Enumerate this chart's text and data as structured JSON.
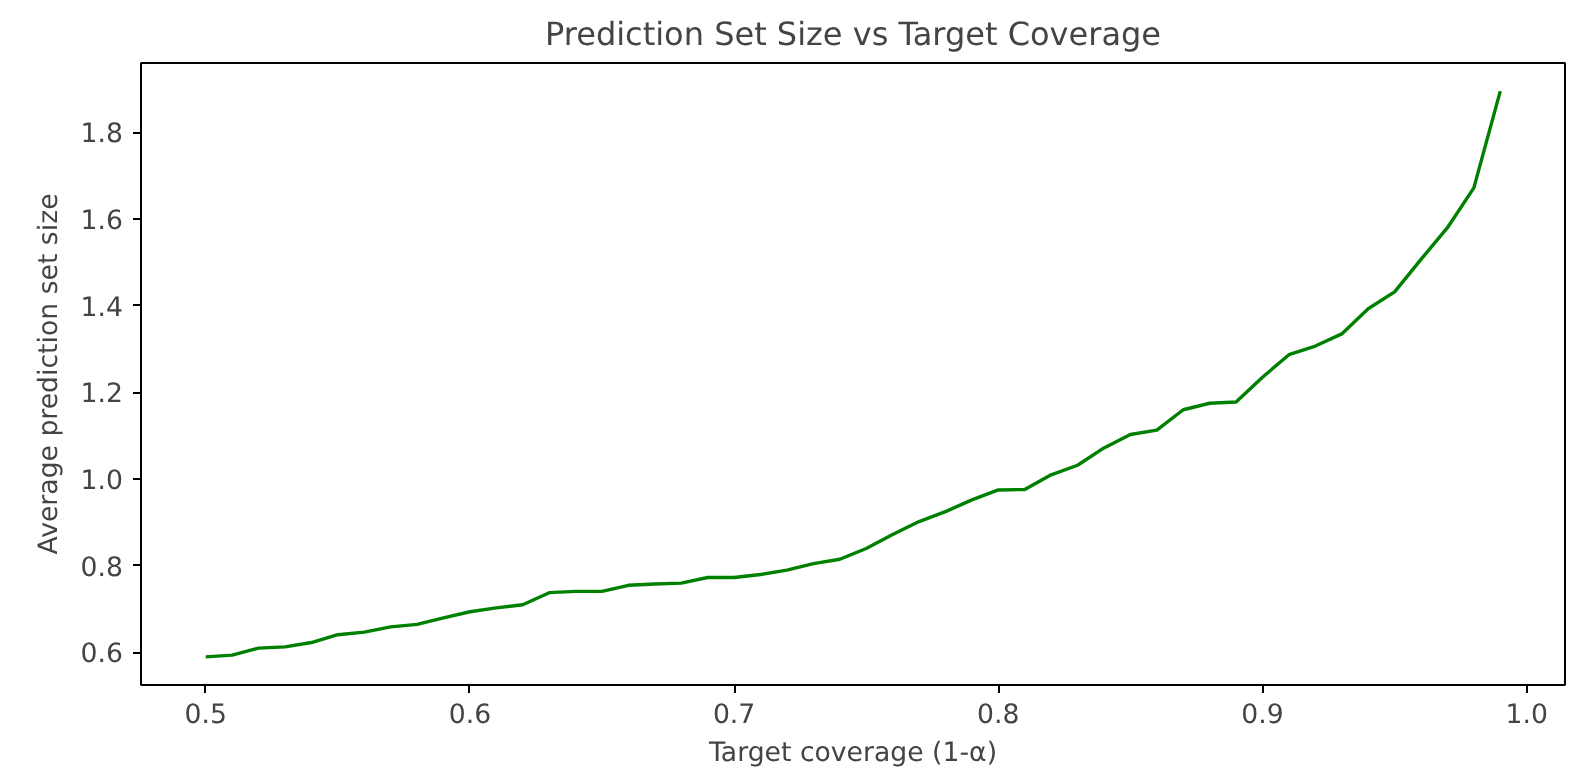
{
  "chart_data": {
    "type": "line",
    "title": "Prediction Set Size vs Target Coverage",
    "xlabel": "Target coverage (1-α)",
    "ylabel": "Average prediction set size",
    "x": [
      0.5,
      0.51,
      0.52,
      0.53,
      0.54,
      0.55,
      0.56,
      0.57,
      0.58,
      0.59,
      0.6,
      0.61,
      0.62,
      0.63,
      0.64,
      0.65,
      0.66,
      0.67,
      0.68,
      0.69,
      0.7,
      0.71,
      0.72,
      0.73,
      0.74,
      0.75,
      0.76,
      0.77,
      0.78,
      0.79,
      0.8,
      0.81,
      0.82,
      0.83,
      0.84,
      0.85,
      0.86,
      0.87,
      0.88,
      0.89,
      0.9,
      0.91,
      0.92,
      0.93,
      0.94,
      0.95,
      0.96,
      0.97,
      0.98,
      0.99
    ],
    "series": [
      {
        "color": "#008000",
        "values": [
          0.59,
          0.594,
          0.61,
          0.613,
          0.623,
          0.641,
          0.647,
          0.659,
          0.665,
          0.68,
          0.694,
          0.703,
          0.71,
          0.738,
          0.741,
          0.741,
          0.755,
          0.758,
          0.76,
          0.773,
          0.773,
          0.78,
          0.79,
          0.805,
          0.815,
          0.84,
          0.872,
          0.902,
          0.925,
          0.952,
          0.975,
          0.976,
          1.01,
          1.032,
          1.072,
          1.103,
          1.113,
          1.16,
          1.175,
          1.178,
          1.235,
          1.287,
          1.307,
          1.335,
          1.393,
          1.432,
          1.507,
          1.58,
          1.672,
          1.895
        ]
      }
    ],
    "xlim": [
      0.4755,
      1.0145
    ],
    "ylim": [
      0.525,
      1.96
    ],
    "xticks": [
      0.5,
      0.6,
      0.7,
      0.8,
      0.9,
      {
        "value": 1,
        "label": "1.0"
      }
    ],
    "yticks": [
      0.6,
      0.8,
      {
        "value": 1,
        "label": "1.0"
      },
      1.2,
      1.4,
      1.6,
      1.8
    ],
    "grid": false,
    "marker": "none",
    "line_style": "solid"
  }
}
